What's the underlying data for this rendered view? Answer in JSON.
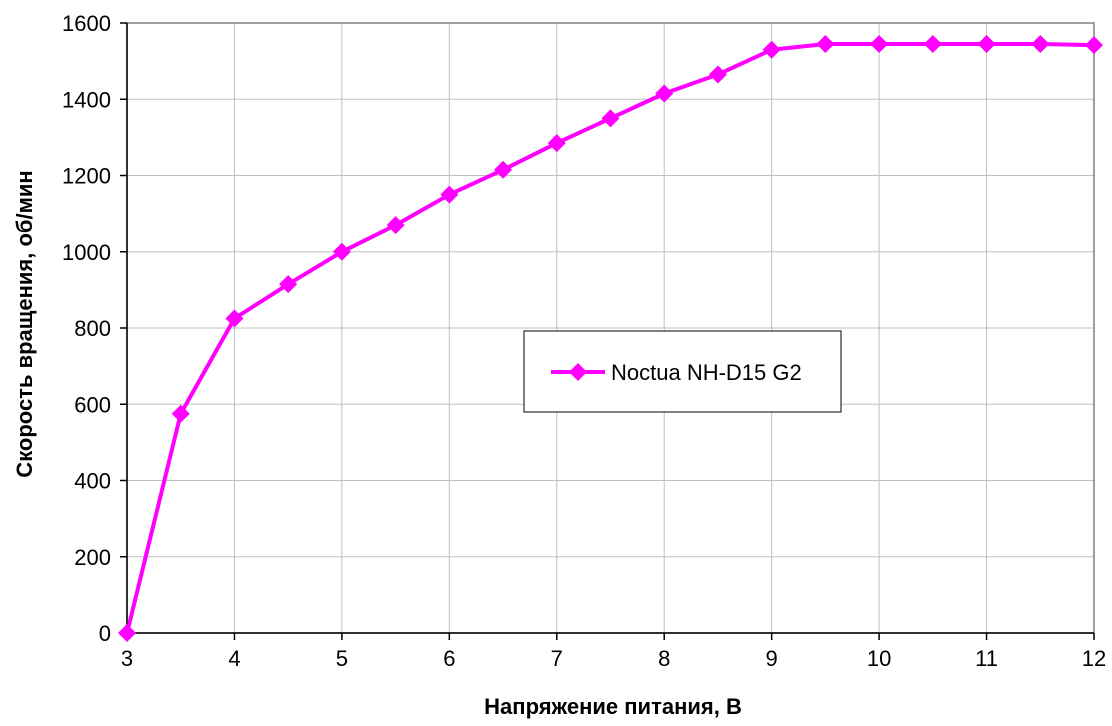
{
  "chart_data": {
    "type": "line",
    "title": "",
    "xlabel": "Напряжение питания, В",
    "ylabel": "Скорость вращения, об/мин",
    "xlim": [
      3,
      12
    ],
    "ylim": [
      0,
      1600
    ],
    "x_ticks": [
      3,
      4,
      5,
      6,
      7,
      8,
      9,
      10,
      11,
      12
    ],
    "y_ticks": [
      0,
      200,
      400,
      600,
      800,
      1000,
      1200,
      1400,
      1600
    ],
    "grid": true,
    "legend_position": "center-right",
    "series": [
      {
        "name": "Noctua NH-D15 G2",
        "color": "#ff00ff",
        "marker": "diamond",
        "x": [
          3,
          3.5,
          4,
          4.5,
          5,
          5.5,
          6,
          6.5,
          7,
          7.5,
          8,
          8.5,
          9,
          9.5,
          10,
          10.5,
          11,
          11.5,
          12
        ],
        "y": [
          0,
          575,
          825,
          915,
          1000,
          1070,
          1150,
          1215,
          1285,
          1350,
          1415,
          1465,
          1530,
          1545,
          1545,
          1545,
          1545,
          1545,
          1542
        ]
      }
    ]
  }
}
